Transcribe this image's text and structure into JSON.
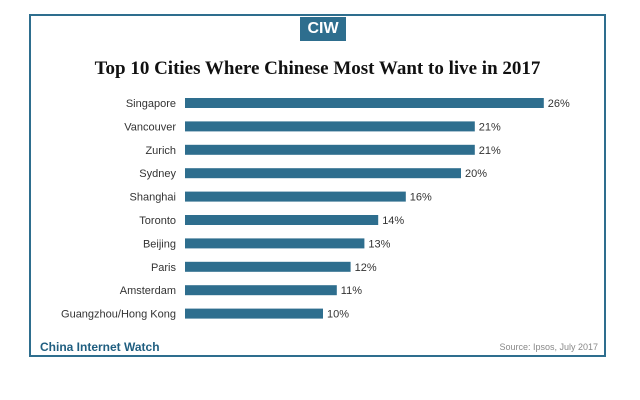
{
  "logo": {
    "text": "CIW"
  },
  "chart_data": {
    "type": "bar",
    "orientation": "horizontal",
    "title": "Top 10 Cities Where Chinese Most Want to live in 2017",
    "categories": [
      "Singapore",
      "Vancouver",
      "Zurich",
      "Sydney",
      "Shanghai",
      "Toronto",
      "Beijing",
      "Paris",
      "Amsterdam",
      "Guangzhou/Hong Kong"
    ],
    "values": [
      26,
      21,
      21,
      20,
      16,
      14,
      13,
      12,
      11,
      10
    ],
    "value_labels": [
      "26%",
      "21%",
      "21%",
      "20%",
      "16%",
      "14%",
      "13%",
      "12%",
      "11%",
      "10%"
    ],
    "unit": "%",
    "bar_color": "#2e6e8e",
    "axis_lines": false,
    "grid": false
  },
  "footer": {
    "brand": "China Internet Watch",
    "source": "Source: Ipsos, July 2017"
  },
  "colors": {
    "accent": "#2e6e8e",
    "brand_text": "#1f5e80"
  }
}
